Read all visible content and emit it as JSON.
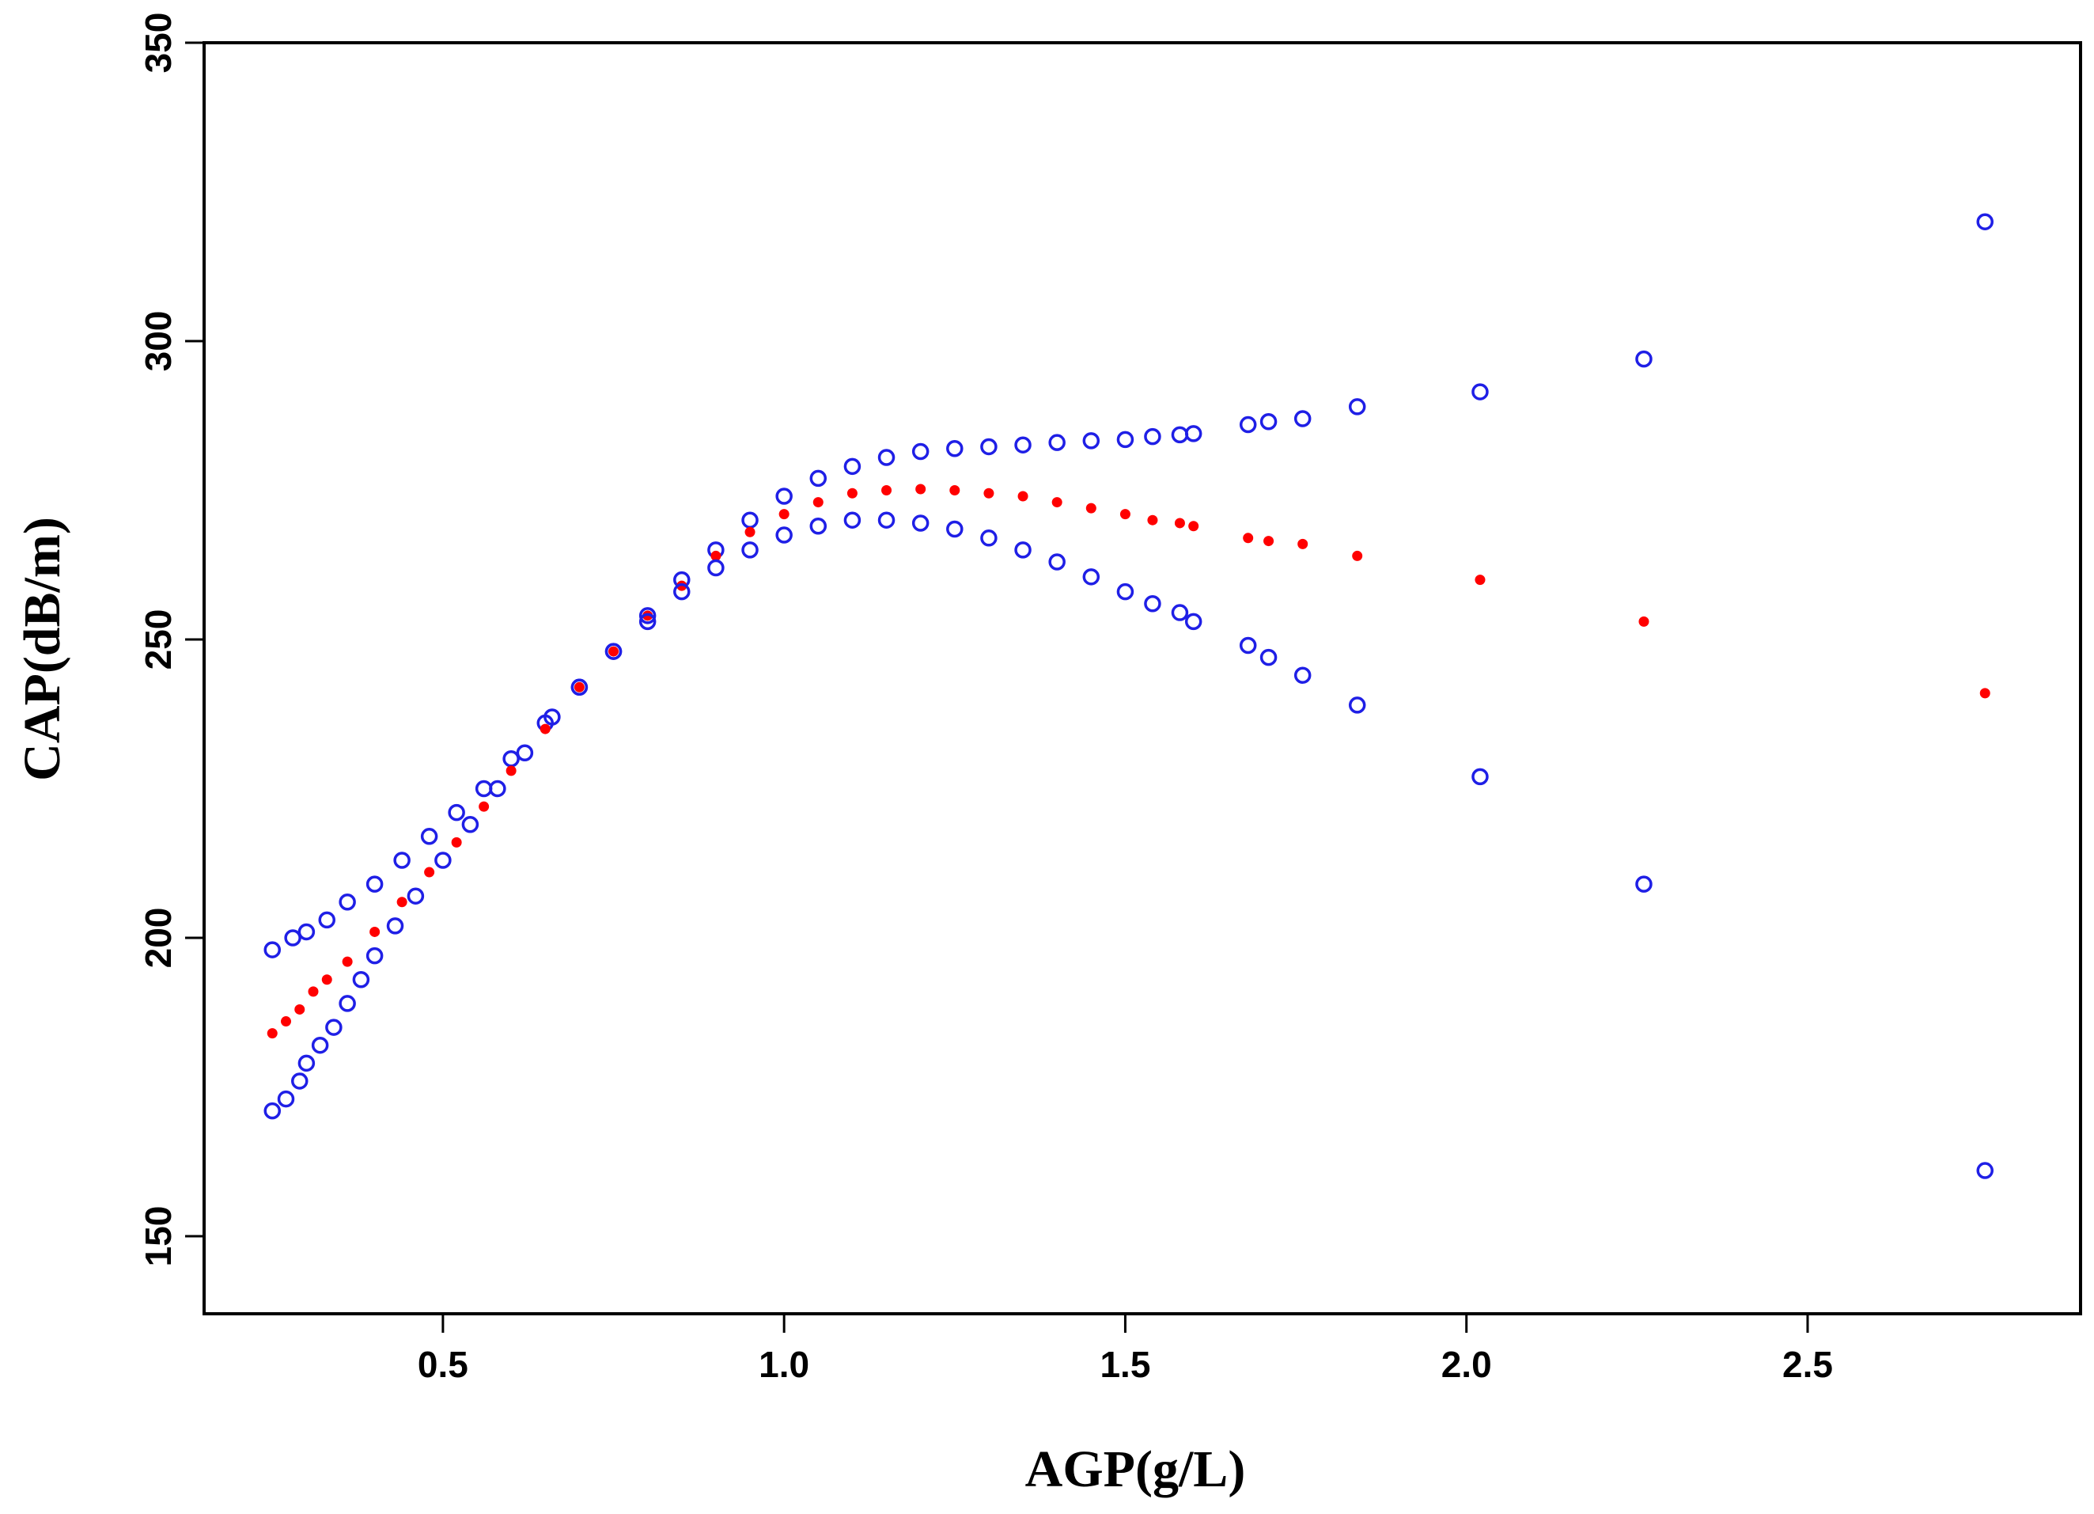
{
  "chart_data": {
    "type": "scatter",
    "title": "",
    "xlabel": "AGP(g/L)",
    "ylabel": "CAP(dB/m)",
    "xlim": [
      0.15,
      2.9
    ],
    "ylim": [
      137,
      350
    ],
    "xticks": [
      0.5,
      1.0,
      1.5,
      2.0,
      2.5
    ],
    "xtick_labels": [
      "0.5",
      "1.0",
      "1.5",
      "2.0",
      "2.5"
    ],
    "yticks": [
      150,
      200,
      250,
      300,
      350
    ],
    "ytick_labels": [
      "150",
      "200",
      "250",
      "300",
      "350"
    ],
    "grid": false,
    "legend": "none",
    "colors": {
      "fit": "#ff0000",
      "ci": "#1f1fe6"
    },
    "series": [
      {
        "name": "upper-ci",
        "marker": "open-circle",
        "color": "#1f1fe6",
        "x": [
          0.25,
          0.28,
          0.3,
          0.33,
          0.36,
          0.4,
          0.44,
          0.48,
          0.52,
          0.56,
          0.6,
          0.65,
          0.7,
          0.75,
          0.8,
          0.85,
          0.9,
          0.95,
          1.0,
          1.05,
          1.1,
          1.15,
          1.2,
          1.25,
          1.3,
          1.35,
          1.4,
          1.45,
          1.5,
          1.54,
          1.58,
          1.6,
          1.68,
          1.71,
          1.76,
          1.84,
          2.02,
          2.26,
          2.76
        ],
        "y": [
          198,
          200,
          201,
          203,
          206,
          209,
          213,
          217,
          221,
          225,
          230,
          236,
          242,
          248,
          254,
          260,
          265,
          270,
          274,
          277,
          279,
          280.5,
          281.5,
          282,
          282.3,
          282.6,
          283,
          283.3,
          283.5,
          284,
          284.3,
          284.5,
          286,
          286.5,
          287,
          289,
          291.5,
          297,
          320
        ]
      },
      {
        "name": "fitted",
        "marker": "filled-dot",
        "color": "#ff0000",
        "x": [
          0.25,
          0.27,
          0.29,
          0.31,
          0.33,
          0.36,
          0.4,
          0.44,
          0.48,
          0.52,
          0.56,
          0.6,
          0.65,
          0.7,
          0.75,
          0.8,
          0.85,
          0.9,
          0.95,
          1.0,
          1.05,
          1.1,
          1.15,
          1.2,
          1.25,
          1.3,
          1.35,
          1.4,
          1.45,
          1.5,
          1.54,
          1.58,
          1.6,
          1.68,
          1.71,
          1.76,
          1.84,
          2.02,
          2.26,
          2.76
        ],
        "y": [
          184,
          186,
          188,
          191,
          193,
          196,
          201,
          206,
          211,
          216,
          222,
          228,
          235,
          242,
          248,
          254,
          259,
          264,
          268,
          271,
          273,
          274.5,
          275,
          275.2,
          275,
          274.5,
          274,
          273,
          272,
          271,
          270,
          269.5,
          269,
          267,
          266.5,
          266,
          264,
          260,
          253,
          241
        ]
      },
      {
        "name": "lower-ci",
        "marker": "open-circle",
        "color": "#1f1fe6",
        "x": [
          0.25,
          0.27,
          0.29,
          0.3,
          0.32,
          0.34,
          0.36,
          0.38,
          0.4,
          0.43,
          0.46,
          0.5,
          0.54,
          0.58,
          0.62,
          0.66,
          0.7,
          0.75,
          0.8,
          0.85,
          0.9,
          0.95,
          1.0,
          1.05,
          1.1,
          1.15,
          1.2,
          1.25,
          1.3,
          1.35,
          1.4,
          1.45,
          1.5,
          1.54,
          1.58,
          1.6,
          1.68,
          1.71,
          1.76,
          1.84,
          2.02,
          2.26,
          2.76
        ],
        "y": [
          171,
          173,
          176,
          179,
          182,
          185,
          189,
          193,
          197,
          202,
          207,
          213,
          219,
          225,
          231,
          237,
          242,
          248,
          253,
          258,
          262,
          265,
          267.5,
          269,
          270,
          270,
          269.5,
          268.5,
          267,
          265,
          263,
          260.5,
          258,
          256,
          254.5,
          253,
          249,
          247,
          244,
          239,
          227,
          209,
          161
        ]
      }
    ]
  }
}
